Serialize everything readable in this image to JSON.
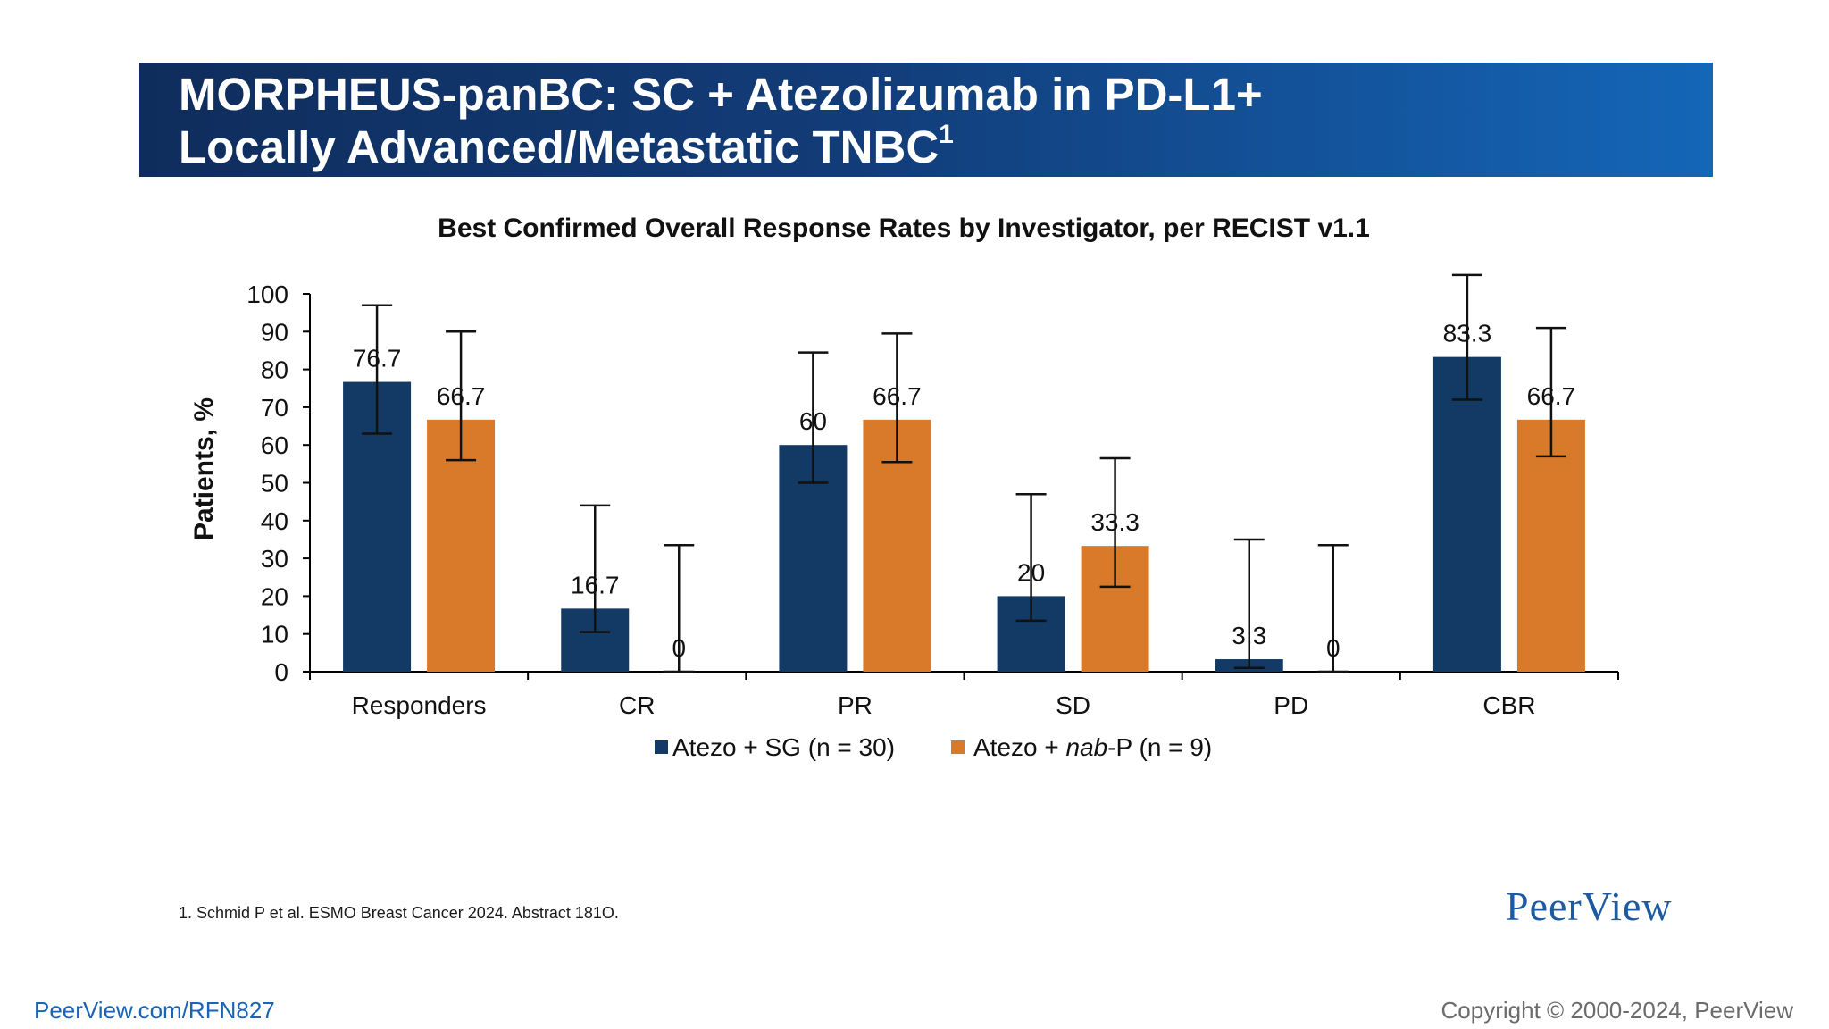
{
  "slide": {
    "title_line1": "MORPHEUS-panBC: SC + Atezolizumab in PD-L1+",
    "title_line2": "Locally Advanced/Metastatic TNBC",
    "title_superscript": "1",
    "footnote": "1. Schmid P et al. ESMO Breast Cancer 2024. Abstract 181O.",
    "logo_text": "PeerView",
    "footer_link": "PeerView.com/RFN827",
    "footer_copyright": "Copyright © 2000-2024, PeerView"
  },
  "colors": {
    "banner_start": "#0f2d5c",
    "banner_end": "#1466b8",
    "series1": "#123a64",
    "series2": "#d97a2b"
  },
  "chart_data": {
    "type": "bar",
    "title": "Best Confirmed Overall Response Rates by Investigator, per RECIST v1.1",
    "ylabel": "Patients, %",
    "xlabel": "",
    "ylim": [
      0,
      100
    ],
    "yticks": [
      0,
      10,
      20,
      30,
      40,
      50,
      60,
      70,
      80,
      90,
      100
    ],
    "categories": [
      "Responders",
      "CR",
      "PR",
      "SD",
      "PD",
      "CBR"
    ],
    "series": [
      {
        "name_prefix": "Atezo + SG (n = 30)",
        "name": "Atezo + SG (n = 30)",
        "color": "#123a64",
        "values": [
          76.7,
          16.7,
          60,
          20,
          3.3,
          83.3
        ],
        "labels": [
          "76.7",
          "16.7",
          "60",
          "20",
          "3.3",
          "83.3"
        ],
        "error_low": [
          63,
          10.5,
          50,
          13.5,
          1,
          72
        ],
        "error_high": [
          97,
          44,
          84.5,
          47,
          35,
          105
        ]
      },
      {
        "name": "Atezo + nab-P (n = 9)",
        "legend_parts": [
          "Atezo + ",
          "nab",
          "-P (n = 9)"
        ],
        "color": "#d97a2b",
        "values": [
          66.7,
          0,
          66.7,
          33.3,
          0,
          66.7
        ],
        "labels": [
          "66.7",
          "0",
          "66.7",
          "33.3",
          "0",
          "66.7"
        ],
        "error_low": [
          56,
          0,
          55.5,
          22.5,
          0,
          57
        ],
        "error_high": [
          90,
          33.5,
          89.5,
          56.5,
          33.5,
          91
        ]
      }
    ],
    "legend_position": "bottom",
    "grid": false
  }
}
